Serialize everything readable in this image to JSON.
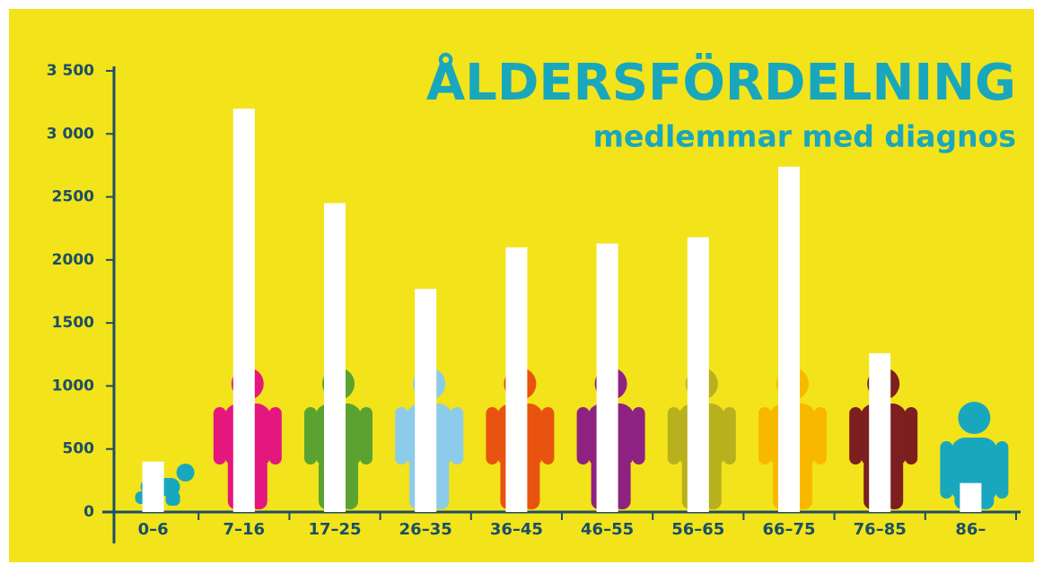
{
  "chart_data": {
    "type": "bar",
    "title": "ÅLDERSFÖRDELNING",
    "subtitle": "medlemmar med diagnos",
    "categories": [
      "0–6",
      "7–16",
      "17–25",
      "26–35",
      "36–45",
      "46–55",
      "56–65",
      "66–75",
      "76–85",
      "86–"
    ],
    "values": [
      400,
      3200,
      2450,
      1770,
      2100,
      2130,
      2180,
      2740,
      1260,
      230
    ],
    "color": "#ffffff",
    "ylim": [
      0,
      3500
    ],
    "yticks": [
      0,
      500,
      1000,
      1500,
      2000,
      2500,
      {
        "value": 3000,
        "label": "3 000"
      },
      {
        "value": 3500,
        "label": "3 500"
      }
    ]
  }
}
